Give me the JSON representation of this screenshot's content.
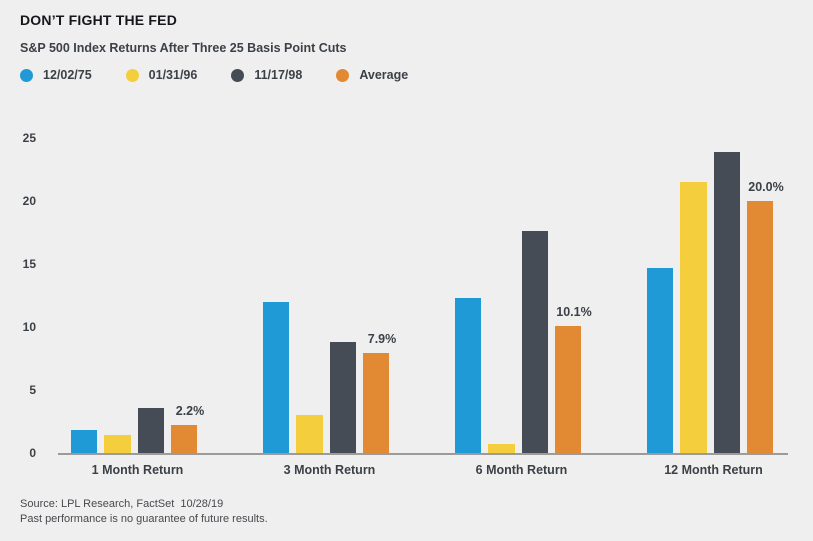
{
  "header": {
    "title": "DON’T FIGHT THE FED",
    "subtitle": "S&P 500 Index Returns After Three 25 Basis Point Cuts"
  },
  "legend": [
    {
      "label": "12/02/75",
      "color": "#1f9ad7"
    },
    {
      "label": "01/31/96",
      "color": "#f5ce3e"
    },
    {
      "label": "11/17/98",
      "color": "#464c55"
    },
    {
      "label": "Average",
      "color": "#e28a33"
    }
  ],
  "chart_data": {
    "type": "bar",
    "title": "DON’T FIGHT THE FED",
    "subtitle": "S&P 500 Index Returns After Three 25 Basis Point Cuts",
    "categories": [
      "1 Month Return",
      "3 Month Return",
      "6 Month Return",
      "12 Month Return"
    ],
    "series": [
      {
        "name": "12/02/75",
        "color": "#1f9ad7",
        "values": [
          1.8,
          12.0,
          12.3,
          14.7
        ]
      },
      {
        "name": "01/31/96",
        "color": "#f5ce3e",
        "values": [
          1.4,
          3.0,
          0.7,
          21.5
        ]
      },
      {
        "name": "11/17/98",
        "color": "#464c55",
        "values": [
          3.6,
          8.8,
          17.6,
          23.9
        ]
      },
      {
        "name": "Average",
        "color": "#e28a33",
        "values": [
          2.2,
          7.9,
          10.1,
          20.0
        ]
      }
    ],
    "annotations": [
      "2.2%",
      "7.9%",
      "10.1%",
      "20.0%"
    ],
    "xlabel": "",
    "ylabel": "",
    "ylim": [
      0,
      25
    ],
    "yticks": [
      0,
      5,
      10,
      15,
      20,
      25
    ],
    "grid": false,
    "legend_position": "top-left"
  },
  "footer": {
    "source": "Source: LPL Research, FactSet  10/28/19",
    "disclaimer": "Past performance is no guarantee of future results."
  }
}
